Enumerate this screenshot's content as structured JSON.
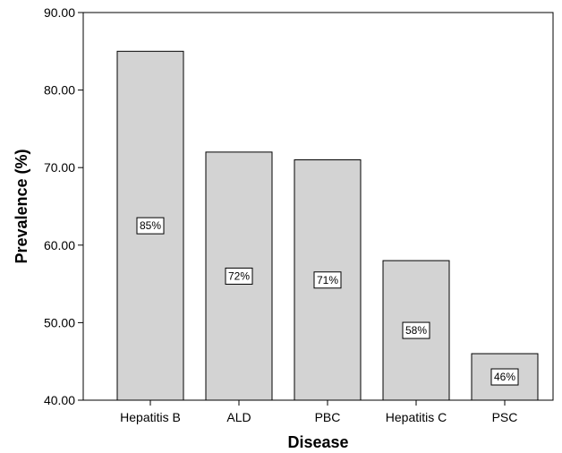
{
  "chart_data": {
    "type": "bar",
    "title": "",
    "xlabel": "Disease",
    "ylabel": "Prevalence (%)",
    "ylim": [
      40,
      90
    ],
    "yticks": [
      "40.00",
      "50.00",
      "60.00",
      "70.00",
      "80.00",
      "90.00"
    ],
    "categories": [
      "Hepatitis B",
      "ALD",
      "PBC",
      "Hepatitis C",
      "PSC"
    ],
    "values": [
      85,
      72,
      71,
      58,
      46
    ],
    "data_labels": [
      "85%",
      "72%",
      "71%",
      "58%",
      "46%"
    ],
    "grid": false,
    "legend": "none",
    "colors": {
      "bar_fill": "#d3d3d3",
      "bar_stroke": "#000000",
      "axis": "#000000",
      "label_box_fill": "#ffffff"
    }
  }
}
